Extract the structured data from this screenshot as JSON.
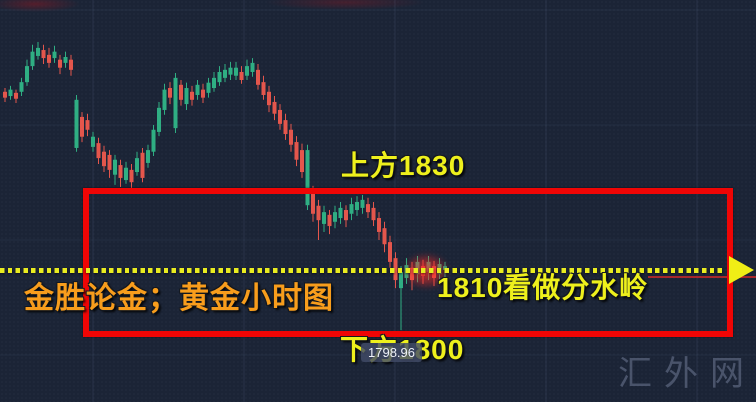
{
  "annotations": {
    "above_label": "上方1830",
    "pivot_label": "1810看做分水岭",
    "below_label": "下方1800",
    "brand_label": "金胜论金；黄金小时图",
    "low_price_label": "1798.96",
    "watermark": "汇外网"
  },
  "colors": {
    "up_candle": "#2fae83",
    "down_candle": "#e4564c",
    "highlight_box": "#ef0505",
    "pivot_yellow": "#e9ec20",
    "label_yellow": "#eef01c",
    "brand_orange": "#f89d1c",
    "background": "#1b2436"
  },
  "chart_data": {
    "type": "candlestick",
    "timeframe_label": "黄金小时图",
    "key_levels": {
      "resistance": 1830,
      "pivot": 1810,
      "support": 1800,
      "marked_low": 1798.96
    },
    "ylim": [
      1795,
      1856
    ],
    "grid": true,
    "legend_position": "none",
    "candles": [
      [
        1843.5,
        1844.2,
        1841.6,
        1842.4
      ],
      [
        1842.7,
        1844.6,
        1842.0,
        1843.9
      ],
      [
        1843.3,
        1843.9,
        1841.4,
        1842.2
      ],
      [
        1843.5,
        1846.1,
        1842.7,
        1845.3
      ],
      [
        1845.3,
        1849.5,
        1844.6,
        1848.3
      ],
      [
        1848.3,
        1852.3,
        1847.6,
        1851.0
      ],
      [
        1850.2,
        1852.8,
        1849.5,
        1851.7
      ],
      [
        1851.3,
        1852.3,
        1848.7,
        1849.8
      ],
      [
        1850.4,
        1851.7,
        1848.0,
        1848.9
      ],
      [
        1849.8,
        1852.1,
        1848.9,
        1851.0
      ],
      [
        1849.5,
        1850.4,
        1846.8,
        1848.0
      ],
      [
        1848.9,
        1851.0,
        1848.0,
        1850.0
      ],
      [
        1849.5,
        1850.4,
        1846.5,
        1847.6
      ],
      [
        1833.0,
        1842.9,
        1832.3,
        1842.0
      ],
      [
        1838.8,
        1839.7,
        1834.1,
        1835.1
      ],
      [
        1838.2,
        1839.4,
        1835.2,
        1836.4
      ],
      [
        1833.2,
        1836.0,
        1832.3,
        1835.1
      ],
      [
        1833.9,
        1834.9,
        1830.0,
        1831.1
      ],
      [
        1832.3,
        1833.4,
        1828.5,
        1829.6
      ],
      [
        1831.7,
        1832.6,
        1827.4,
        1828.9
      ],
      [
        1828.0,
        1831.7,
        1826.1,
        1830.8
      ],
      [
        1829.8,
        1830.8,
        1825.7,
        1827.4
      ],
      [
        1827.0,
        1830.4,
        1826.3,
        1829.3
      ],
      [
        1828.9,
        1830.0,
        1825.5,
        1826.6
      ],
      [
        1828.5,
        1832.3,
        1827.8,
        1831.1
      ],
      [
        1832.1,
        1833.0,
        1826.6,
        1827.4
      ],
      [
        1830.2,
        1833.6,
        1829.3,
        1832.6
      ],
      [
        1832.3,
        1837.3,
        1831.5,
        1836.4
      ],
      [
        1836.0,
        1841.6,
        1835.2,
        1840.5
      ],
      [
        1840.1,
        1845.0,
        1839.2,
        1843.9
      ],
      [
        1844.2,
        1845.3,
        1841.2,
        1842.4
      ],
      [
        1836.7,
        1847.0,
        1835.8,
        1846.1
      ],
      [
        1844.8,
        1845.7,
        1840.9,
        1842.0
      ],
      [
        1841.2,
        1845.2,
        1840.1,
        1844.2
      ],
      [
        1843.5,
        1844.6,
        1840.9,
        1842.0
      ],
      [
        1842.9,
        1845.7,
        1842.0,
        1844.8
      ],
      [
        1843.9,
        1845.0,
        1841.4,
        1842.4
      ],
      [
        1843.3,
        1846.1,
        1842.4,
        1845.2
      ],
      [
        1844.2,
        1847.2,
        1843.5,
        1846.1
      ],
      [
        1845.3,
        1848.3,
        1844.6,
        1847.2
      ],
      [
        1846.1,
        1848.7,
        1845.3,
        1847.6
      ],
      [
        1846.7,
        1849.1,
        1845.7,
        1848.0
      ],
      [
        1846.5,
        1849.1,
        1845.7,
        1848.0
      ],
      [
        1847.2,
        1848.3,
        1845.0,
        1845.7
      ],
      [
        1846.5,
        1849.5,
        1845.7,
        1848.3
      ],
      [
        1847.2,
        1849.8,
        1846.3,
        1848.9
      ],
      [
        1847.6,
        1848.7,
        1843.9,
        1844.8
      ],
      [
        1845.3,
        1846.5,
        1842.0,
        1842.9
      ],
      [
        1843.5,
        1844.6,
        1839.7,
        1841.0
      ],
      [
        1841.6,
        1842.7,
        1838.2,
        1839.4
      ],
      [
        1840.1,
        1841.2,
        1836.4,
        1837.5
      ],
      [
        1838.2,
        1839.4,
        1834.5,
        1835.6
      ],
      [
        1836.4,
        1837.5,
        1832.3,
        1833.6
      ],
      [
        1834.1,
        1835.2,
        1829.6,
        1830.8
      ],
      [
        1832.6,
        1833.8,
        1827.4,
        1828.5
      ],
      [
        1822.3,
        1833.6,
        1821.4,
        1832.6
      ],
      [
        1824.8,
        1825.9,
        1819.2,
        1820.7
      ],
      [
        1822.2,
        1823.3,
        1815.8,
        1819.5
      ],
      [
        1818.8,
        1822.2,
        1817.3,
        1821.0
      ],
      [
        1820.5,
        1821.4,
        1816.9,
        1818.4
      ],
      [
        1819.2,
        1822.2,
        1818.0,
        1821.0
      ],
      [
        1819.9,
        1822.9,
        1818.8,
        1821.8
      ],
      [
        1821.4,
        1822.3,
        1818.2,
        1819.5
      ],
      [
        1820.7,
        1823.7,
        1819.5,
        1822.5
      ],
      [
        1821.4,
        1824.0,
        1820.3,
        1822.9
      ],
      [
        1821.8,
        1824.2,
        1820.7,
        1823.3
      ],
      [
        1822.5,
        1823.7,
        1819.9,
        1821.0
      ],
      [
        1821.8,
        1822.9,
        1818.4,
        1819.5
      ],
      [
        1819.9,
        1821.0,
        1815.8,
        1817.3
      ],
      [
        1818.0,
        1819.2,
        1813.5,
        1815.0
      ],
      [
        1815.4,
        1816.6,
        1810.6,
        1811.7
      ],
      [
        1812.4,
        1813.5,
        1806.8,
        1808.3
      ],
      [
        1806.8,
        1810.9,
        1798.96,
        1809.8
      ],
      [
        1808.7,
        1812.4,
        1807.6,
        1811.1
      ],
      [
        1810.6,
        1811.7,
        1806.4,
        1808.3
      ],
      [
        1809.4,
        1812.8,
        1807.9,
        1811.7
      ],
      [
        1810.9,
        1812.1,
        1807.6,
        1809.1
      ],
      [
        1809.8,
        1812.8,
        1808.3,
        1811.7
      ],
      [
        1810.9,
        1811.9,
        1807.2,
        1808.7
      ],
      [
        1809.4,
        1812.4,
        1807.9,
        1811.3
      ],
      [
        1810.2,
        1811.7,
        1807.6,
        1810.9
      ]
    ]
  }
}
